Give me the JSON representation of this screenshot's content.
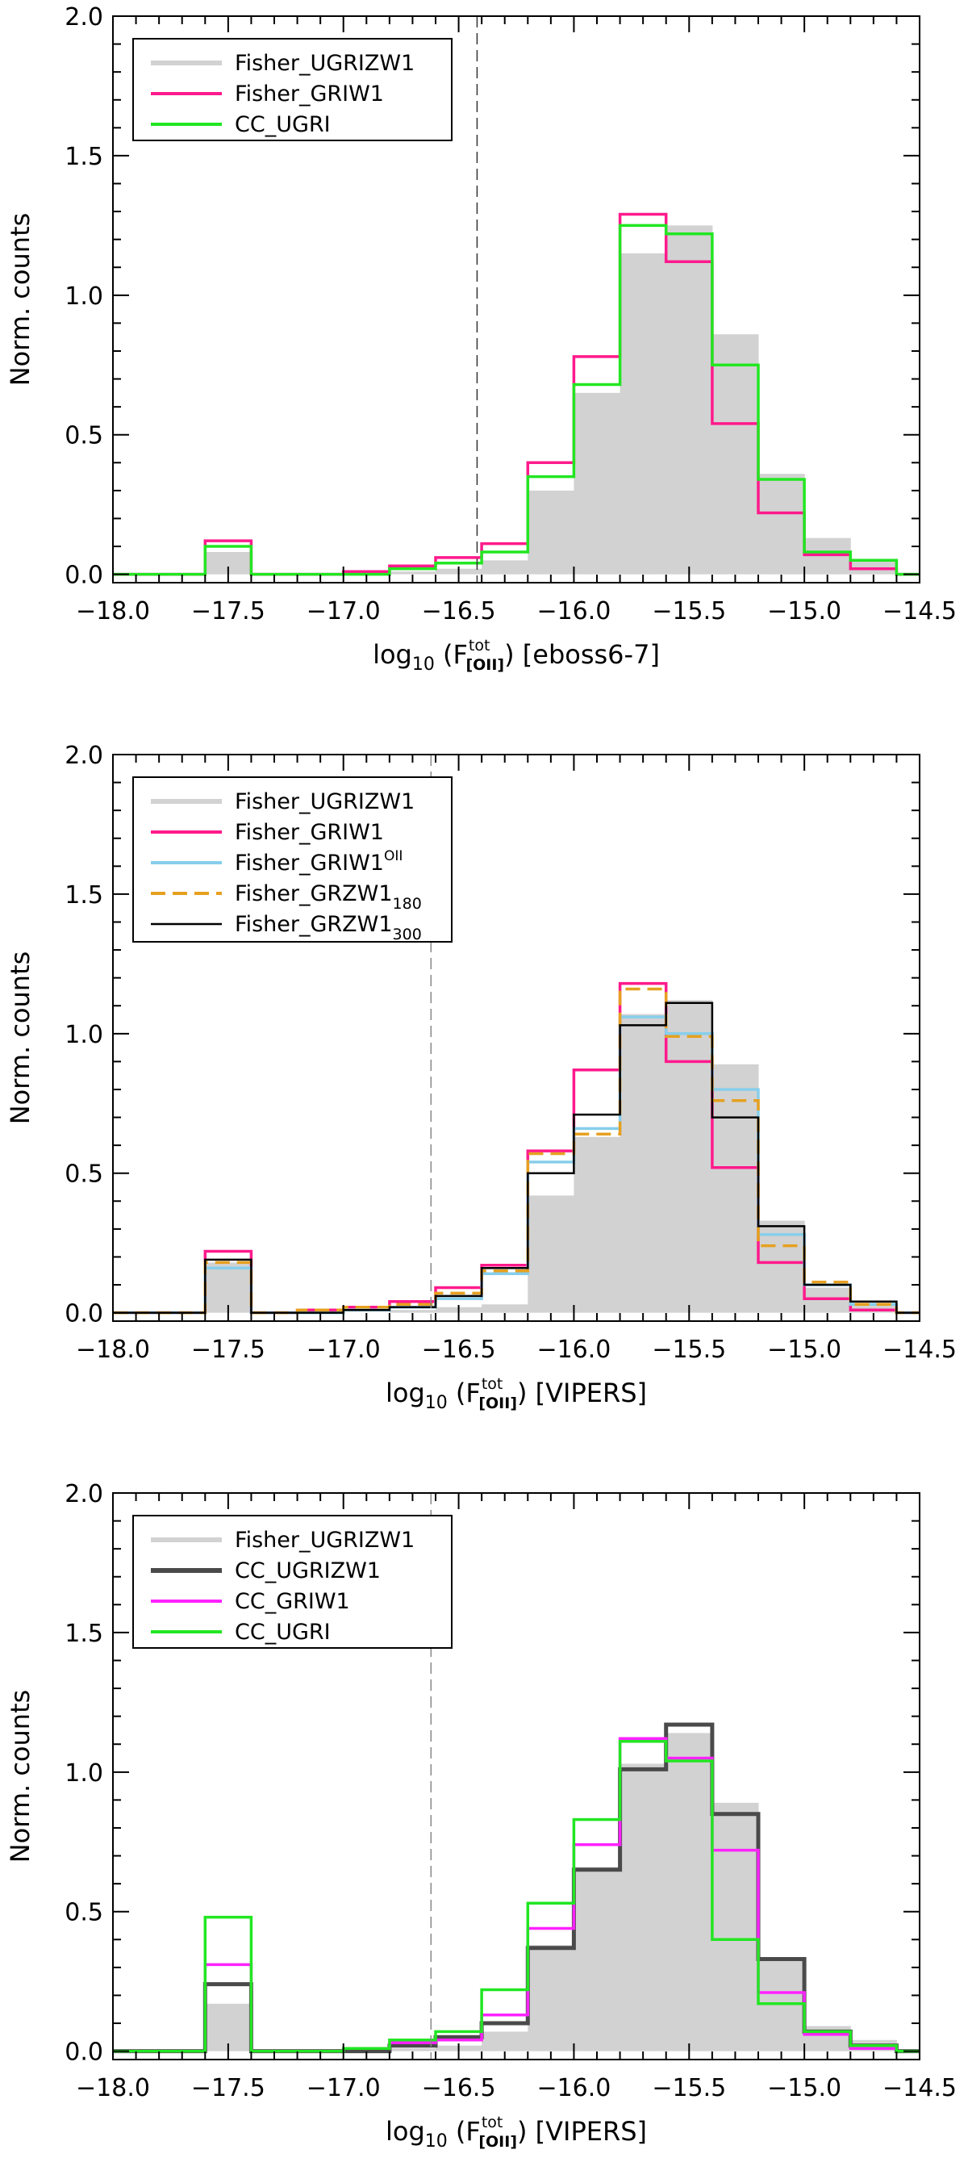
{
  "chart_data": [
    {
      "type": "step",
      "panel": "top",
      "xlabel_prefix": "log",
      "xlabel_sub": "10",
      "xlabel_var": "F",
      "xlabel_sup": "tot",
      "xlabel_varsub": "[OII]",
      "xlabel_suffix": "[eboss6-7]",
      "ylabel": "Norm. counts",
      "xlim": [
        -18.0,
        -14.5
      ],
      "ylim": [
        -0.03,
        2.0
      ],
      "xticks": [
        -18.0,
        -17.5,
        -17.0,
        -16.5,
        -16.0,
        -15.5,
        -15.0,
        -14.5
      ],
      "xtick_labels": [
        "−18.0",
        "−17.5",
        "−17.0",
        "−16.5",
        "−16.0",
        "−15.5",
        "−15.0",
        "−14.5"
      ],
      "yticks": [
        0.0,
        0.5,
        1.0,
        1.5,
        2.0
      ],
      "ytick_labels": [
        "0.0",
        "0.5",
        "1.0",
        "1.5",
        "2.0"
      ],
      "vline": -16.42,
      "bin_edges": [
        -18.0,
        -17.8,
        -17.6,
        -17.4,
        -17.2,
        -17.0,
        -16.8,
        -16.6,
        -16.4,
        -16.2,
        -16.0,
        -15.8,
        -15.6,
        -15.4,
        -15.2,
        -15.0,
        -14.8,
        -14.6,
        -14.5
      ],
      "series": [
        {
          "name": "Fisher_UGRIZW1",
          "style": "filled",
          "color": "#d2d2d2",
          "values": [
            0.0,
            0.0,
            0.08,
            0.0,
            0.0,
            0.0,
            0.01,
            0.02,
            0.05,
            0.3,
            0.65,
            1.15,
            1.25,
            0.86,
            0.36,
            0.13,
            0.05,
            0.0
          ]
        },
        {
          "name": "Fisher_GRIW1",
          "style": "solid",
          "color": "#ff1a8c",
          "values": [
            0.0,
            0.0,
            0.12,
            0.0,
            0.0,
            0.01,
            0.03,
            0.06,
            0.11,
            0.4,
            0.78,
            1.29,
            1.12,
            0.54,
            0.22,
            0.07,
            0.02,
            0.0
          ]
        },
        {
          "name": "CC_UGRI",
          "style": "solid",
          "color": "#22e622",
          "values": [
            0.0,
            0.0,
            0.1,
            0.0,
            0.0,
            0.0,
            0.02,
            0.04,
            0.08,
            0.35,
            0.68,
            1.25,
            1.22,
            0.75,
            0.34,
            0.08,
            0.05,
            0.0
          ]
        }
      ],
      "legend": [
        {
          "label": "Fisher_UGRIZW1",
          "style": "thick",
          "color": "#d2d2d2"
        },
        {
          "label": "Fisher_GRIW1",
          "style": "solid",
          "color": "#ff1a8c"
        },
        {
          "label": "CC_UGRI",
          "style": "solid",
          "color": "#22e622"
        }
      ]
    },
    {
      "type": "step",
      "panel": "middle",
      "xlabel_prefix": "log",
      "xlabel_sub": "10",
      "xlabel_var": "F",
      "xlabel_sup": "tot",
      "xlabel_varsub": "[OII]",
      "xlabel_suffix": "[VIPERS]",
      "ylabel": "Norm. counts",
      "xlim": [
        -18.0,
        -14.5
      ],
      "ylim": [
        -0.03,
        2.0
      ],
      "xticks": [
        -18.0,
        -17.5,
        -17.0,
        -16.5,
        -16.0,
        -15.5,
        -15.0,
        -14.5
      ],
      "xtick_labels": [
        "−18.0",
        "−17.5",
        "−17.0",
        "−16.5",
        "−16.0",
        "−15.5",
        "−15.0",
        "−14.5"
      ],
      "yticks": [
        0.0,
        0.5,
        1.0,
        1.5,
        2.0
      ],
      "ytick_labels": [
        "0.0",
        "0.5",
        "1.0",
        "1.5",
        "2.0"
      ],
      "vline": -16.62,
      "bin_edges": [
        -18.0,
        -17.8,
        -17.6,
        -17.4,
        -17.2,
        -17.0,
        -16.8,
        -16.6,
        -16.4,
        -16.2,
        -16.0,
        -15.8,
        -15.6,
        -15.4,
        -15.2,
        -15.0,
        -14.8,
        -14.6,
        -14.5
      ],
      "series": [
        {
          "name": "Fisher_UGRIZW1",
          "style": "filled",
          "color": "#d2d2d2",
          "values": [
            0.0,
            0.0,
            0.18,
            0.0,
            0.0,
            0.0,
            0.01,
            0.02,
            0.03,
            0.42,
            0.63,
            1.07,
            1.12,
            0.89,
            0.33,
            0.09,
            0.04,
            0.0
          ]
        },
        {
          "name": "Fisher_GRIW1",
          "style": "solid",
          "color": "#ff1a8c",
          "values": [
            0.0,
            0.0,
            0.22,
            0.0,
            0.01,
            0.02,
            0.04,
            0.09,
            0.17,
            0.58,
            0.87,
            1.18,
            0.9,
            0.52,
            0.18,
            0.05,
            0.01,
            0.0
          ]
        },
        {
          "name": "Fisher_GRIW1^OII",
          "style": "solid",
          "color": "#87ceeb",
          "values": [
            0.0,
            0.0,
            0.16,
            0.0,
            0.0,
            0.01,
            0.02,
            0.05,
            0.14,
            0.54,
            0.66,
            1.06,
            1.0,
            0.8,
            0.28,
            0.1,
            0.03,
            0.0
          ]
        },
        {
          "name": "Fisher_GRZW1_180",
          "style": "dashed",
          "color": "#e6a020",
          "values": [
            0.0,
            0.0,
            0.18,
            0.0,
            0.01,
            0.02,
            0.03,
            0.07,
            0.15,
            0.57,
            0.64,
            1.16,
            0.99,
            0.76,
            0.24,
            0.11,
            0.03,
            0.0
          ]
        },
        {
          "name": "Fisher_GRZW1_300",
          "style": "thin",
          "color": "#000000",
          "values": [
            0.0,
            0.0,
            0.19,
            0.0,
            0.0,
            0.01,
            0.02,
            0.06,
            0.16,
            0.5,
            0.71,
            1.03,
            1.11,
            0.7,
            0.31,
            0.1,
            0.04,
            0.0
          ]
        }
      ],
      "legend": [
        {
          "label": "Fisher_UGRIZW1",
          "style": "thick",
          "color": "#d2d2d2"
        },
        {
          "label": "Fisher_GRIW1",
          "style": "solid",
          "color": "#ff1a8c"
        },
        {
          "label": "Fisher_GRIW1",
          "sup": "OII",
          "style": "solid",
          "color": "#87ceeb"
        },
        {
          "label": "Fisher_GRZW1",
          "sub": "180",
          "style": "dashed",
          "color": "#e6a020"
        },
        {
          "label": "Fisher_GRZW1",
          "sub": "300",
          "style": "thin",
          "color": "#000000"
        }
      ]
    },
    {
      "type": "step",
      "panel": "bottom",
      "xlabel_prefix": "log",
      "xlabel_sub": "10",
      "xlabel_var": "F",
      "xlabel_sup": "tot",
      "xlabel_varsub": "[OII]",
      "xlabel_suffix": "[VIPERS]",
      "ylabel": "Norm. counts",
      "xlim": [
        -18.0,
        -14.5
      ],
      "ylim": [
        -0.03,
        2.0
      ],
      "xticks": [
        -18.0,
        -17.5,
        -17.0,
        -16.5,
        -16.0,
        -15.5,
        -15.0,
        -14.5
      ],
      "xtick_labels": [
        "−18.0",
        "−17.5",
        "−17.0",
        "−16.5",
        "−16.0",
        "−15.5",
        "−15.0",
        "−14.5"
      ],
      "yticks": [
        0.0,
        0.5,
        1.0,
        1.5,
        2.0
      ],
      "ytick_labels": [
        "0.0",
        "0.5",
        "1.0",
        "1.5",
        "2.0"
      ],
      "vline": -16.62,
      "bin_edges": [
        -18.0,
        -17.8,
        -17.6,
        -17.4,
        -17.2,
        -17.0,
        -16.8,
        -16.6,
        -16.4,
        -16.2,
        -16.0,
        -15.8,
        -15.6,
        -15.4,
        -15.2,
        -15.0,
        -14.8,
        -14.6,
        -14.5
      ],
      "series": [
        {
          "name": "Fisher_UGRIZW1",
          "style": "filled",
          "color": "#d2d2d2",
          "values": [
            0.0,
            0.0,
            0.17,
            0.0,
            0.0,
            0.0,
            0.01,
            0.02,
            0.07,
            0.38,
            0.66,
            1.03,
            1.14,
            0.89,
            0.33,
            0.09,
            0.04,
            0.0
          ]
        },
        {
          "name": "CC_UGRIZW1",
          "style": "thick",
          "color": "#4a4a4a",
          "values": [
            0.0,
            0.0,
            0.24,
            0.0,
            0.0,
            0.0,
            0.02,
            0.05,
            0.1,
            0.37,
            0.65,
            1.01,
            1.17,
            0.85,
            0.33,
            0.07,
            0.02,
            0.0
          ]
        },
        {
          "name": "CC_GRIW1",
          "style": "solid",
          "color": "#ff22ff",
          "values": [
            0.0,
            0.0,
            0.31,
            0.0,
            0.0,
            0.01,
            0.03,
            0.04,
            0.13,
            0.44,
            0.74,
            1.12,
            1.05,
            0.72,
            0.21,
            0.06,
            0.01,
            0.0
          ]
        },
        {
          "name": "CC_UGRI",
          "style": "solid",
          "color": "#22e622",
          "values": [
            0.0,
            0.0,
            0.48,
            0.0,
            0.0,
            0.01,
            0.04,
            0.07,
            0.22,
            0.53,
            0.83,
            1.11,
            1.04,
            0.4,
            0.17,
            0.07,
            0.02,
            0.0
          ]
        }
      ],
      "legend": [
        {
          "label": "Fisher_UGRIZW1",
          "style": "thick",
          "color": "#d2d2d2"
        },
        {
          "label": "CC_UGRIZW1",
          "style": "thick",
          "color": "#4a4a4a"
        },
        {
          "label": "CC_GRIW1",
          "style": "solid",
          "color": "#ff22ff"
        },
        {
          "label": "CC_UGRI",
          "style": "solid",
          "color": "#22e622"
        }
      ]
    }
  ]
}
